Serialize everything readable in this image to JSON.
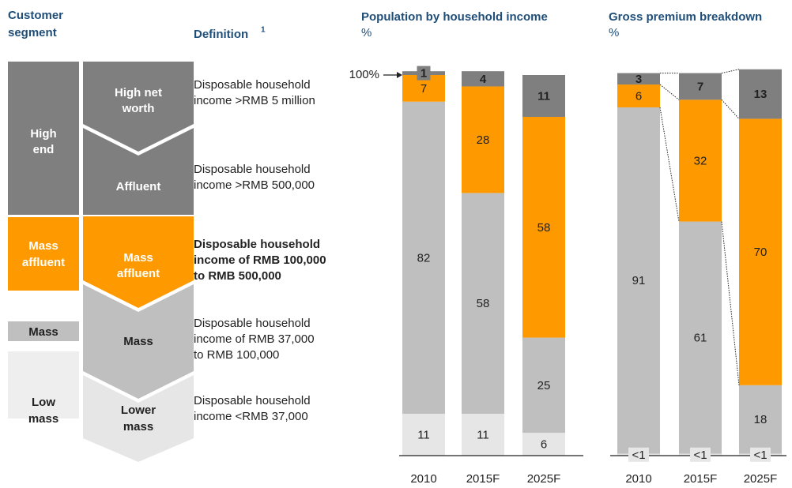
{
  "headers": {
    "segment": [
      "Customer",
      "segment"
    ],
    "definition": "Definition",
    "definition_note": "1"
  },
  "segments": {
    "groups": [
      [
        "High",
        "end"
      ],
      [
        "Mass",
        "affluent"
      ],
      [
        "Mass"
      ],
      [
        "Low",
        "mass"
      ]
    ],
    "subsegments": [
      [
        "High net",
        "worth"
      ],
      [
        "Affluent"
      ],
      [
        "Mass",
        "affluent"
      ],
      [
        "Mass"
      ],
      [
        "Lower",
        "mass"
      ]
    ],
    "definitions": [
      [
        "Disposable household",
        "income >RMB 5 million"
      ],
      [
        "Disposable household",
        "income >RMB 500,000"
      ],
      [
        "Disposable household",
        "income of RMB 100,000",
        "to RMB 500,000"
      ],
      [
        "Disposable household",
        "income of RMB 37,000",
        "to RMB 100,000"
      ],
      [
        "Disposable household",
        "income <RMB 37,000"
      ]
    ]
  },
  "chart_data": [
    {
      "type": "stacked_bar",
      "title": "Population by household income",
      "subtitle": "%",
      "categories": [
        "2010",
        "2015F",
        "2025F"
      ],
      "ylim": [
        0,
        100
      ],
      "yticks": [
        {
          "value": 100,
          "label": "100%"
        }
      ],
      "series": [
        {
          "color": "#e6e6e6",
          "label_color": "#222222",
          "values": [
            11,
            11,
            6
          ]
        },
        {
          "color": "#bfbfbf",
          "label_color": "#222222",
          "values": [
            82,
            58,
            25
          ]
        },
        {
          "color": "#ff9900",
          "label_color": "#222222",
          "values": [
            7,
            28,
            58
          ]
        },
        {
          "color": "#7f7f7f",
          "label_color": "#ffffff",
          "values": [
            1,
            4,
            11
          ]
        }
      ]
    },
    {
      "type": "stacked_bar",
      "title": "Gross premium breakdown",
      "subtitle": "%",
      "categories": [
        "2010",
        "2015F",
        "2025F"
      ],
      "ylim": [
        0,
        100
      ],
      "connector_lines": true,
      "series": [
        {
          "color": "#e6e6e6",
          "label_color": "#222222",
          "values": [
            0.5,
            0.5,
            0.5
          ],
          "value_labels": [
            "<1",
            "<1",
            "<1"
          ]
        },
        {
          "color": "#bfbfbf",
          "label_color": "#222222",
          "values": [
            91,
            61,
            18
          ]
        },
        {
          "color": "#ff9900",
          "label_color": "#222222",
          "values": [
            6,
            32,
            70
          ]
        },
        {
          "color": "#7f7f7f",
          "label_color": "#ffffff",
          "values": [
            3,
            7,
            13
          ]
        }
      ]
    }
  ]
}
